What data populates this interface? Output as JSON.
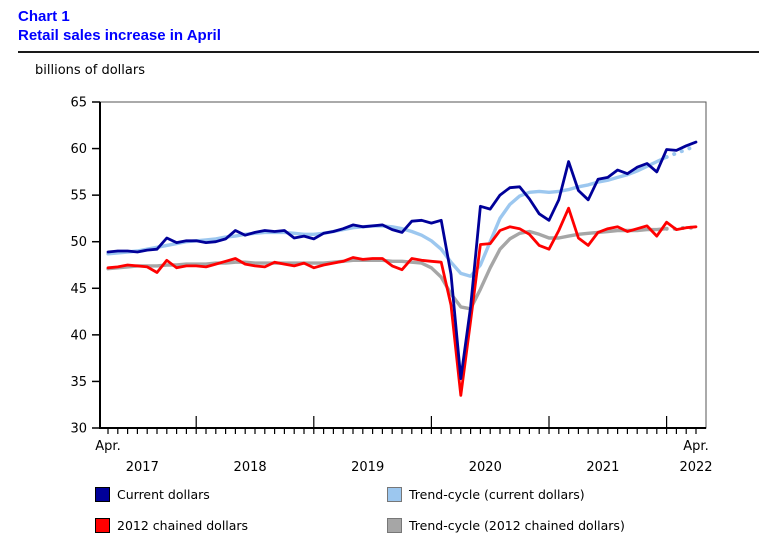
{
  "header": {
    "chart_label": "Chart 1",
    "title": "Retail sales increase in April",
    "unit_label": "billions of dollars"
  },
  "colors": {
    "title_blue": "#0000ff",
    "current_dollars": "#000099",
    "trend_current": "#9cc7ef",
    "chained_dollars": "#ff0000",
    "trend_chained": "#a6a6a6",
    "axis": "#000000",
    "frame": "#555555"
  },
  "legend": {
    "items": [
      {
        "label": "Current dollars",
        "color": "#000099",
        "border": "#000000",
        "col": 0,
        "row": 0
      },
      {
        "label": "Trend-cycle (current dollars)",
        "color": "#9cc7ef",
        "border": "#777777",
        "col": 1,
        "row": 0
      },
      {
        "label": "2012 chained dollars",
        "color": "#ff0000",
        "border": "#000000",
        "col": 0,
        "row": 1
      },
      {
        "label": "Trend-cycle (2012 chained dollars)",
        "color": "#a6a6a6",
        "border": "#777777",
        "col": 1,
        "row": 1
      }
    ]
  },
  "chart_data": {
    "type": "line",
    "title": "Retail sales increase in April",
    "ylabel": "billions of dollars",
    "ylim": [
      30,
      65
    ],
    "y_ticks": [
      30,
      35,
      40,
      45,
      50,
      55,
      60,
      65
    ],
    "x_start": "2017-04",
    "x_end": "2022-04",
    "months_count": 61,
    "january_tick_indices": [
      9,
      21,
      33,
      45,
      57
    ],
    "x_month_labels": [
      {
        "text": "Apr.",
        "index": 0
      },
      {
        "text": "Apr.",
        "index": 60
      }
    ],
    "x_year_labels": [
      {
        "text": "2017",
        "index": 3.5
      },
      {
        "text": "2018",
        "index": 14.5
      },
      {
        "text": "2019",
        "index": 26.5
      },
      {
        "text": "2020",
        "index": 38.5
      },
      {
        "text": "2021",
        "index": 50.5
      },
      {
        "text": "2022",
        "index": 60
      }
    ],
    "legend_position": "bottom",
    "grid": false,
    "series": [
      {
        "name": "Trend-cycle (2012 chained dollars)",
        "color": "#a6a6a6",
        "width": 3.4,
        "dotted_from_index": 57,
        "values": [
          47.1,
          47.2,
          47.3,
          47.4,
          47.4,
          47.4,
          47.5,
          47.5,
          47.6,
          47.6,
          47.6,
          47.7,
          47.7,
          47.8,
          47.8,
          47.7,
          47.7,
          47.7,
          47.7,
          47.7,
          47.7,
          47.7,
          47.7,
          47.8,
          47.9,
          48.0,
          48.0,
          48.0,
          48.0,
          47.9,
          47.9,
          47.8,
          47.7,
          47.2,
          46.2,
          44.4,
          43.0,
          42.8,
          44.9,
          47.2,
          49.2,
          50.3,
          50.9,
          51.1,
          50.8,
          50.4,
          50.4,
          50.6,
          50.8,
          50.9,
          51.0,
          51.1,
          51.2,
          51.2,
          51.2,
          51.3,
          51.3,
          51.4,
          51.4,
          51.5,
          51.5
        ]
      },
      {
        "name": "Trend-cycle (current dollars)",
        "color": "#9cc7ef",
        "width": 3.4,
        "dotted_from_index": 57,
        "values": [
          48.7,
          48.8,
          48.9,
          49.0,
          49.2,
          49.4,
          49.6,
          49.8,
          50.0,
          50.1,
          50.2,
          50.3,
          50.5,
          50.6,
          50.8,
          50.9,
          51.0,
          51.0,
          51.0,
          50.9,
          50.8,
          50.8,
          50.9,
          51.1,
          51.3,
          51.5,
          51.6,
          51.7,
          51.7,
          51.6,
          51.4,
          51.1,
          50.7,
          50.1,
          49.2,
          47.8,
          46.6,
          46.3,
          47.5,
          50.0,
          52.5,
          54.0,
          54.9,
          55.3,
          55.4,
          55.3,
          55.4,
          55.6,
          55.9,
          56.1,
          56.4,
          56.6,
          56.9,
          57.2,
          57.6,
          58.1,
          58.6,
          59.1,
          59.5,
          59.9,
          60.3
        ]
      },
      {
        "name": "2012 chained dollars",
        "color": "#ff0000",
        "width": 2.8,
        "dotted_from_index": null,
        "values": [
          47.2,
          47.3,
          47.5,
          47.4,
          47.3,
          46.7,
          48.0,
          47.2,
          47.4,
          47.4,
          47.3,
          47.6,
          47.9,
          48.2,
          47.6,
          47.4,
          47.3,
          47.8,
          47.6,
          47.4,
          47.7,
          47.2,
          47.5,
          47.7,
          47.9,
          48.3,
          48.1,
          48.2,
          48.2,
          47.4,
          47.0,
          48.2,
          48.0,
          47.9,
          47.8,
          43.2,
          33.5,
          41.5,
          49.7,
          49.8,
          51.2,
          51.6,
          51.4,
          50.8,
          49.6,
          49.2,
          51.2,
          53.6,
          50.4,
          49.6,
          51.0,
          51.4,
          51.6,
          51.1,
          51.4,
          51.7,
          50.6,
          52.1,
          51.3,
          51.5,
          51.6
        ]
      },
      {
        "name": "Current dollars",
        "color": "#000099",
        "width": 2.8,
        "dotted_from_index": null,
        "values": [
          48.9,
          49.0,
          49.0,
          48.9,
          49.1,
          49.2,
          50.4,
          49.9,
          50.1,
          50.1,
          49.9,
          50.0,
          50.3,
          51.2,
          50.7,
          51.0,
          51.2,
          51.1,
          51.2,
          50.4,
          50.6,
          50.3,
          50.9,
          51.1,
          51.4,
          51.8,
          51.6,
          51.7,
          51.8,
          51.3,
          51.0,
          52.2,
          52.3,
          52.0,
          52.3,
          46.5,
          35.3,
          43.0,
          53.8,
          53.5,
          55.0,
          55.8,
          55.9,
          54.6,
          53.0,
          52.3,
          54.5,
          58.6,
          55.5,
          54.5,
          56.7,
          56.9,
          57.7,
          57.3,
          58.0,
          58.4,
          57.5,
          59.9,
          59.8,
          60.3,
          60.7
        ]
      }
    ]
  }
}
